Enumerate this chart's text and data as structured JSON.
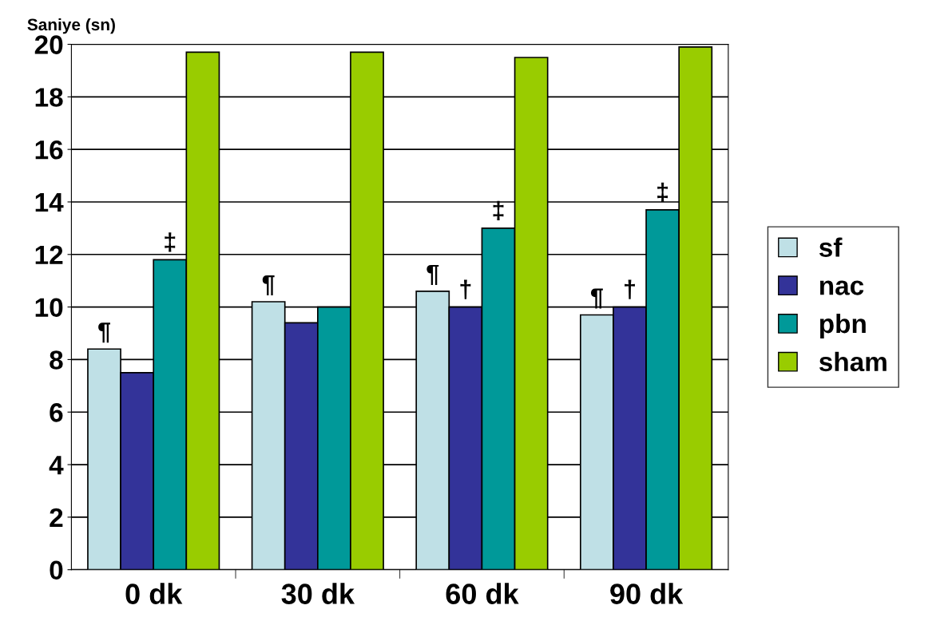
{
  "chart_data": {
    "type": "bar",
    "ylabel": "Saniye (sn)",
    "categories": [
      "0 dk",
      "30 dk",
      "60 dk",
      "90 dk"
    ],
    "series": [
      {
        "name": "sf",
        "color": "#bfe0e6",
        "values": [
          8.4,
          10.2,
          10.6,
          9.7
        ],
        "value_labels": [
          "¶",
          "¶",
          "¶",
          "¶"
        ]
      },
      {
        "name": "nac",
        "color": "#333399",
        "values": [
          7.5,
          9.4,
          10.0,
          10.0
        ],
        "value_labels": [
          null,
          null,
          "†",
          "†"
        ]
      },
      {
        "name": "pbn",
        "color": "#009999",
        "values": [
          11.8,
          10.0,
          13.0,
          13.7
        ],
        "value_labels": [
          "‡",
          null,
          "‡",
          "‡"
        ]
      },
      {
        "name": "sham",
        "color": "#99cc00",
        "values": [
          19.7,
          19.7,
          19.5,
          19.9
        ],
        "value_labels": [
          null,
          null,
          null,
          null
        ]
      }
    ],
    "ylim": [
      0,
      20
    ],
    "yticks": [
      0,
      2,
      4,
      6,
      8,
      10,
      12,
      14,
      16,
      18,
      20
    ],
    "grid": "y",
    "legend": "right"
  }
}
